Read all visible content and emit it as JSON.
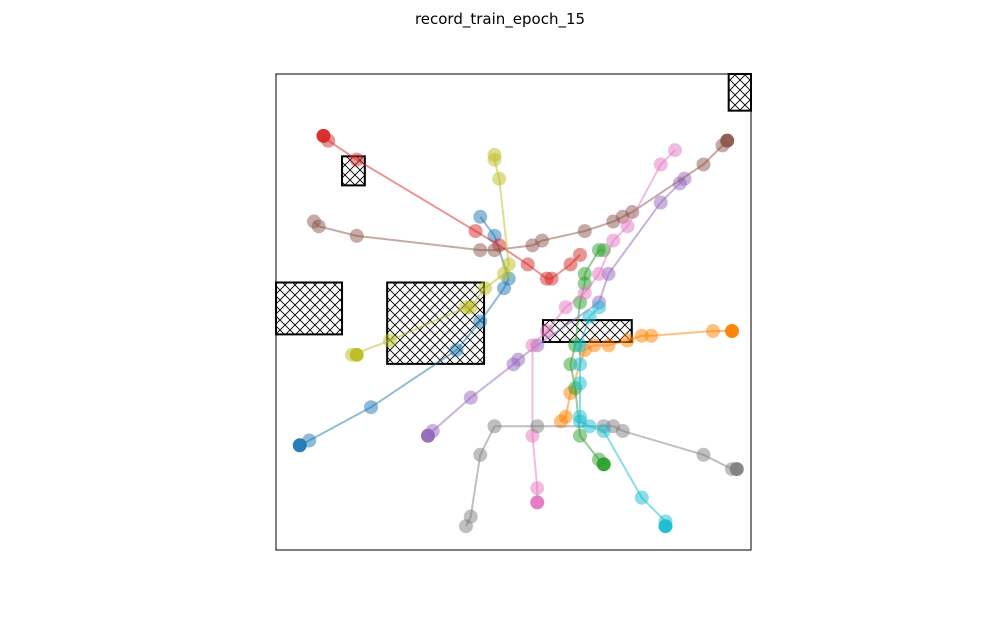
{
  "chart_data": {
    "type": "scatter",
    "title": "record_train_epoch_15",
    "xlabel": "",
    "ylabel": "",
    "xlim": [
      0,
      1
    ],
    "ylim": [
      0,
      1
    ],
    "ticks": "none",
    "grid": false,
    "legend": "none",
    "marker_alpha": 0.5,
    "obstacles": [
      {
        "x0": 0.953,
        "y0": 0.923,
        "x1": 1.0,
        "y1": 1.0
      },
      {
        "x0": 0.139,
        "y0": 0.766,
        "x1": 0.187,
        "y1": 0.827
      },
      {
        "x0": 0.0,
        "y0": 0.453,
        "x1": 0.139,
        "y1": 0.562
      },
      {
        "x0": 0.234,
        "y0": 0.391,
        "x1": 0.438,
        "y1": 0.562
      },
      {
        "x0": 0.562,
        "y0": 0.437,
        "x1": 0.749,
        "y1": 0.483
      }
    ],
    "series": [
      {
        "color": "#1f77b4",
        "points": [
          [
            0.05,
            0.22
          ],
          [
            0.07,
            0.23
          ],
          [
            0.2,
            0.3
          ],
          [
            0.38,
            0.42
          ],
          [
            0.43,
            0.48
          ],
          [
            0.48,
            0.55
          ],
          [
            0.49,
            0.57
          ],
          [
            0.46,
            0.66
          ],
          [
            0.43,
            0.7
          ]
        ]
      },
      {
        "color": "#ff7f00",
        "points": [
          [
            0.96,
            0.46
          ],
          [
            0.92,
            0.46
          ],
          [
            0.79,
            0.45
          ],
          [
            0.77,
            0.45
          ],
          [
            0.74,
            0.44
          ],
          [
            0.7,
            0.43
          ],
          [
            0.67,
            0.43
          ],
          [
            0.65,
            0.42
          ],
          [
            0.62,
            0.33
          ],
          [
            0.61,
            0.28
          ],
          [
            0.6,
            0.27
          ]
        ]
      },
      {
        "color": "#2ca02c",
        "points": [
          [
            0.69,
            0.18
          ],
          [
            0.68,
            0.19
          ],
          [
            0.64,
            0.24
          ],
          [
            0.63,
            0.34
          ],
          [
            0.62,
            0.39
          ],
          [
            0.63,
            0.43
          ],
          [
            0.64,
            0.52
          ],
          [
            0.65,
            0.56
          ],
          [
            0.65,
            0.58
          ],
          [
            0.68,
            0.63
          ],
          [
            0.69,
            0.63
          ]
        ]
      },
      {
        "color": "#d62728",
        "points": [
          [
            0.1,
            0.87
          ],
          [
            0.11,
            0.86
          ],
          [
            0.17,
            0.82
          ],
          [
            0.42,
            0.67
          ],
          [
            0.47,
            0.64
          ],
          [
            0.53,
            0.6
          ],
          [
            0.57,
            0.57
          ],
          [
            0.58,
            0.57
          ],
          [
            0.62,
            0.6
          ],
          [
            0.64,
            0.62
          ]
        ]
      },
      {
        "color": "#9467bd",
        "points": [
          [
            0.32,
            0.24
          ],
          [
            0.33,
            0.25
          ],
          [
            0.41,
            0.32
          ],
          [
            0.5,
            0.39
          ],
          [
            0.51,
            0.4
          ],
          [
            0.55,
            0.43
          ],
          [
            0.68,
            0.52
          ],
          [
            0.7,
            0.58
          ],
          [
            0.81,
            0.73
          ],
          [
            0.85,
            0.77
          ],
          [
            0.86,
            0.78
          ]
        ]
      },
      {
        "color": "#8c564b",
        "points": [
          [
            0.95,
            0.86
          ],
          [
            0.94,
            0.85
          ],
          [
            0.9,
            0.81
          ],
          [
            0.75,
            0.71
          ],
          [
            0.73,
            0.7
          ],
          [
            0.71,
            0.69
          ],
          [
            0.65,
            0.67
          ],
          [
            0.56,
            0.65
          ],
          [
            0.54,
            0.64
          ],
          [
            0.46,
            0.63
          ],
          [
            0.43,
            0.63
          ],
          [
            0.17,
            0.66
          ],
          [
            0.09,
            0.68
          ],
          [
            0.08,
            0.69
          ]
        ]
      },
      {
        "color": "#e377c2",
        "points": [
          [
            0.55,
            0.1
          ],
          [
            0.55,
            0.13
          ],
          [
            0.54,
            0.24
          ],
          [
            0.54,
            0.43
          ],
          [
            0.57,
            0.46
          ],
          [
            0.61,
            0.51
          ],
          [
            0.65,
            0.54
          ],
          [
            0.68,
            0.58
          ],
          [
            0.71,
            0.65
          ],
          [
            0.74,
            0.68
          ],
          [
            0.81,
            0.81
          ],
          [
            0.84,
            0.84
          ]
        ]
      },
      {
        "color": "#7f7f7f",
        "points": [
          [
            0.97,
            0.17
          ],
          [
            0.96,
            0.17
          ],
          [
            0.9,
            0.2
          ],
          [
            0.73,
            0.25
          ],
          [
            0.71,
            0.26
          ],
          [
            0.69,
            0.26
          ],
          [
            0.55,
            0.26
          ],
          [
            0.46,
            0.26
          ],
          [
            0.43,
            0.2
          ],
          [
            0.41,
            0.07
          ],
          [
            0.4,
            0.05
          ]
        ]
      },
      {
        "color": "#bcbd22",
        "points": [
          [
            0.17,
            0.41
          ],
          [
            0.16,
            0.41
          ],
          [
            0.24,
            0.44
          ],
          [
            0.4,
            0.51
          ],
          [
            0.41,
            0.51
          ],
          [
            0.44,
            0.55
          ],
          [
            0.48,
            0.58
          ],
          [
            0.49,
            0.6
          ],
          [
            0.47,
            0.78
          ],
          [
            0.46,
            0.82
          ],
          [
            0.46,
            0.83
          ]
        ]
      },
      {
        "color": "#17becf",
        "points": [
          [
            0.82,
            0.05
          ],
          [
            0.82,
            0.06
          ],
          [
            0.77,
            0.11
          ],
          [
            0.69,
            0.25
          ],
          [
            0.66,
            0.26
          ],
          [
            0.64,
            0.27
          ],
          [
            0.64,
            0.28
          ],
          [
            0.64,
            0.35
          ],
          [
            0.64,
            0.39
          ],
          [
            0.64,
            0.43
          ],
          [
            0.66,
            0.49
          ],
          [
            0.68,
            0.51
          ]
        ]
      }
    ]
  }
}
